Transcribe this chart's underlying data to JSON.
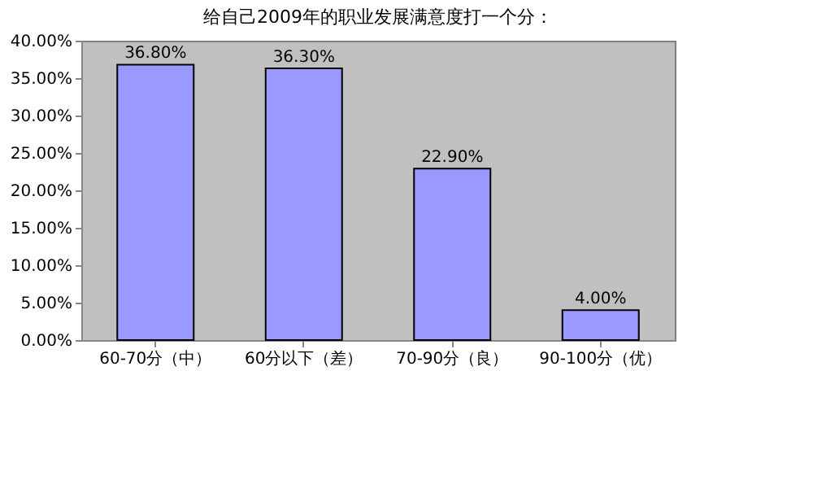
{
  "chart_data": {
    "type": "bar",
    "title": "给自己2009年的职业发展满意度打一个分：",
    "categories": [
      "60-70分（中）",
      "60分以下（差）",
      "70-90分（良）",
      "90-100分（优）"
    ],
    "values": [
      36.8,
      36.3,
      22.9,
      4.0
    ],
    "value_labels": [
      "36.80%",
      "36.30%",
      "22.90%",
      "4.00%"
    ],
    "color": "#9999ff",
    "ylim": [
      0,
      40
    ],
    "yticks": [
      {
        "value": 0,
        "label": "0.00%"
      },
      {
        "value": 5,
        "label": "5.00%"
      },
      {
        "value": 10,
        "label": "10.00%"
      },
      {
        "value": 15,
        "label": "15.00%"
      },
      {
        "value": 20,
        "label": "20.00%"
      },
      {
        "value": 25,
        "label": "25.00%"
      },
      {
        "value": 30,
        "label": "30.00%"
      },
      {
        "value": 35,
        "label": "35.00%"
      },
      {
        "value": 40,
        "label": "40.00%"
      }
    ],
    "grid": false
  }
}
